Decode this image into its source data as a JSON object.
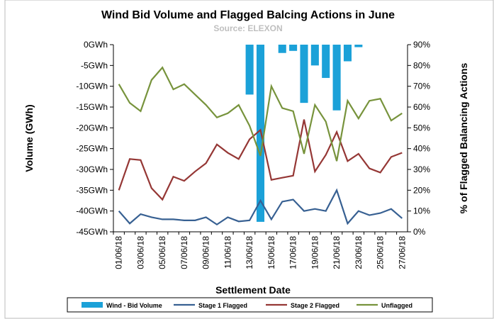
{
  "chart_data": {
    "type": "bar-line",
    "title": "Wind Bid Volume and  Flagged Balcing Actions in June",
    "subtitle": "Source: ELEXON",
    "x_label": "Settlement Date",
    "y_label": "Volume (GWh)",
    "y2_label": "% of  Flagged Balancing Actions",
    "categories": [
      "01/06/18",
      null,
      "03/06/18",
      null,
      "05/06/18",
      null,
      "07/06/18",
      null,
      "09/06/18",
      null,
      "11/06/18",
      null,
      "13/06/18",
      null,
      "15/06/18",
      null,
      "17/06/18",
      null,
      "19/06/18",
      null,
      "21/06/18",
      null,
      "23/06/18",
      null,
      "25/06/18",
      null,
      "27/06/18"
    ],
    "ylim": [
      -45,
      0
    ],
    "yticks": [
      {
        "value": 0,
        "label": "0GWh"
      },
      {
        "value": -5,
        "label": "-5GWh"
      },
      {
        "value": -10,
        "label": "-10GWh"
      },
      {
        "value": -15,
        "label": "-15GWh"
      },
      {
        "value": -20,
        "label": "-20GWh"
      },
      {
        "value": -25,
        "label": "-25GWh"
      },
      {
        "value": -30,
        "label": "-30GWh"
      },
      {
        "value": -35,
        "label": "-35GWh"
      },
      {
        "value": -40,
        "label": "-40GWh"
      },
      {
        "value": -45,
        "label": "-45GWh"
      }
    ],
    "y2lim": [
      0,
      90
    ],
    "y2ticks": [
      {
        "value": 90,
        "label": "90%"
      },
      {
        "value": 80,
        "label": "80%"
      },
      {
        "value": 70,
        "label": "70%"
      },
      {
        "value": 60,
        "label": "60%"
      },
      {
        "value": 50,
        "label": "50%"
      },
      {
        "value": 40,
        "label": "40%"
      },
      {
        "value": 30,
        "label": "30%"
      },
      {
        "value": 20,
        "label": "20%"
      },
      {
        "value": 10,
        "label": "10%"
      },
      {
        "value": 0,
        "label": "0%"
      }
    ],
    "series": [
      {
        "name": "Wind - Bid Volume",
        "type": "bar",
        "color": "#1ba1d8",
        "values": [
          0,
          0,
          0,
          0,
          0,
          0,
          0,
          0,
          0,
          0,
          0,
          0,
          -12,
          -42.6,
          0,
          -2,
          -1.5,
          -14,
          -5,
          -8,
          -15.8,
          -4,
          -0.6,
          0,
          0,
          0,
          0
        ]
      },
      {
        "name": "Stage 1 Flagged",
        "type": "line",
        "axis": "y2",
        "color": "#376092",
        "values": [
          10,
          4,
          8.5,
          7,
          6,
          6,
          5.5,
          5.5,
          7,
          3.5,
          7,
          5,
          5.5,
          15,
          6,
          14.5,
          15.5,
          10,
          11,
          10,
          20,
          4,
          10,
          8,
          9,
          11,
          6.5
        ]
      },
      {
        "name": "Stage 2 Flagged",
        "type": "line",
        "axis": "y2",
        "color": "#953735",
        "values": [
          20,
          35,
          34.5,
          21,
          15.5,
          26.5,
          24.5,
          29,
          33,
          42,
          38,
          35,
          44.5,
          49,
          25,
          26,
          27,
          54,
          29,
          37,
          48,
          34,
          37.5,
          30.5,
          28.5,
          36,
          38
        ]
      },
      {
        "name": "Unflagged",
        "type": "line",
        "axis": "y2",
        "color": "#77933c",
        "values": [
          71,
          62,
          58,
          73,
          79,
          68.5,
          71,
          66,
          61,
          55,
          57,
          61,
          51,
          36.5,
          70,
          59.5,
          58,
          37.5,
          61,
          53,
          34,
          63,
          54.5,
          63,
          64,
          53.5,
          57
        ]
      }
    ]
  }
}
